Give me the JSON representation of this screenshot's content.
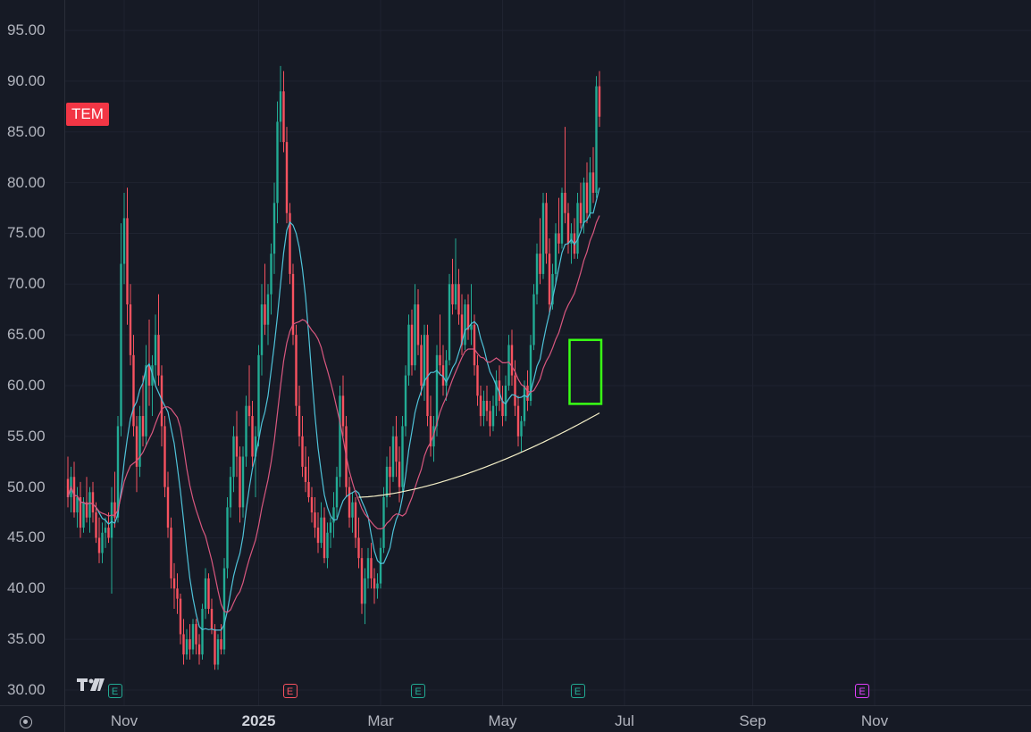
{
  "ticker": "TEM",
  "chart_data": {
    "type": "candlestick",
    "symbol": "TEM",
    "ylim": [
      28.5,
      98
    ],
    "y_ticks": [
      "95.00",
      "90.00",
      "85.00",
      "80.00",
      "75.00",
      "70.00",
      "65.00",
      "60.00",
      "55.00",
      "50.00",
      "45.00",
      "40.00",
      "35.00",
      "30.00"
    ],
    "x_ticks": [
      "Nov",
      "2025",
      "Mar",
      "May",
      "Jul",
      "Sep",
      "Nov"
    ],
    "x_tick_index": [
      18,
      61,
      100,
      139,
      178,
      219,
      258
    ],
    "colors": {
      "up": "#22ab94",
      "down": "#f7525f",
      "ma_fast": "#4fc3d9",
      "ma_mid": "#d9577f",
      "ma_slow": "#f5f0c8",
      "highlight": "#39ff14"
    },
    "ohlc": [
      [
        50.8,
        53.0,
        48.0,
        49.0
      ],
      [
        49.0,
        52.0,
        47.5,
        51.0
      ],
      [
        51.0,
        52.5,
        47.0,
        47.5
      ],
      [
        47.5,
        50.0,
        46.0,
        49.0
      ],
      [
        49.0,
        50.5,
        45.0,
        46.0
      ],
      [
        46.0,
        49.0,
        45.5,
        48.5
      ],
      [
        48.5,
        51.0,
        46.5,
        47.0
      ],
      [
        47.0,
        50.0,
        45.5,
        49.5
      ],
      [
        49.5,
        50.5,
        46.5,
        47.5
      ],
      [
        47.5,
        48.5,
        44.5,
        45.0
      ],
      [
        45.0,
        47.0,
        42.5,
        43.5
      ],
      [
        43.5,
        46.5,
        42.5,
        45.5
      ],
      [
        45.5,
        47.0,
        44.0,
        46.0
      ],
      [
        46.0,
        47.5,
        44.5,
        45.0
      ],
      [
        45.0,
        50.0,
        39.5,
        48.5
      ],
      [
        48.5,
        51.5,
        46.0,
        47.0
      ],
      [
        47.0,
        57.0,
        46.5,
        56.0
      ],
      [
        56.0,
        76.0,
        55.0,
        72.0
      ],
      [
        72.0,
        79.0,
        70.0,
        76.5
      ],
      [
        76.5,
        79.5,
        66.0,
        68.0
      ],
      [
        68.0,
        70.0,
        62.0,
        63.0
      ],
      [
        63.0,
        65.0,
        55.0,
        56.0
      ],
      [
        56.0,
        57.0,
        49.5,
        52.0
      ],
      [
        52.0,
        58.0,
        51.0,
        57.0
      ],
      [
        57.0,
        61.0,
        54.0,
        55.0
      ],
      [
        55.0,
        64.0,
        54.0,
        62.0
      ],
      [
        62.0,
        66.5,
        58.0,
        60.0
      ],
      [
        60.0,
        63.0,
        57.0,
        62.0
      ],
      [
        62.0,
        67.0,
        60.0,
        65.0
      ],
      [
        65.0,
        69.0,
        60.0,
        61.0
      ],
      [
        61.0,
        62.0,
        54.0,
        56.0
      ],
      [
        56.0,
        57.0,
        49.0,
        50.0
      ],
      [
        50.0,
        51.5,
        45.0,
        46.0
      ],
      [
        46.0,
        47.0,
        40.0,
        41.0
      ],
      [
        41.0,
        42.5,
        38.0,
        40.0
      ],
      [
        40.0,
        41.5,
        37.5,
        39.0
      ],
      [
        39.0,
        39.5,
        34.5,
        35.5
      ],
      [
        35.5,
        37.0,
        32.5,
        33.5
      ],
      [
        33.5,
        36.0,
        33.0,
        35.0
      ],
      [
        35.0,
        36.5,
        33.0,
        34.0
      ],
      [
        34.0,
        37.0,
        33.5,
        36.5
      ],
      [
        36.5,
        37.0,
        33.5,
        34.5
      ],
      [
        34.5,
        35.5,
        32.5,
        33.5
      ],
      [
        33.5,
        38.5,
        33.0,
        38.0
      ],
      [
        38.0,
        42.0,
        37.0,
        41.0
      ],
      [
        41.0,
        41.5,
        37.5,
        38.0
      ],
      [
        38.0,
        39.0,
        35.5,
        36.0
      ],
      [
        36.0,
        36.5,
        32.0,
        32.5
      ],
      [
        32.5,
        35.5,
        32.0,
        35.0
      ],
      [
        35.0,
        36.5,
        33.5,
        34.0
      ],
      [
        34.0,
        43.0,
        33.5,
        42.0
      ],
      [
        42.0,
        49.0,
        41.0,
        48.0
      ],
      [
        48.0,
        52.0,
        47.0,
        51.0
      ],
      [
        51.0,
        56.0,
        49.5,
        55.0
      ],
      [
        55.0,
        57.5,
        51.0,
        53.0
      ],
      [
        53.0,
        54.0,
        46.5,
        48.0
      ],
      [
        48.0,
        54.0,
        47.0,
        53.0
      ],
      [
        53.0,
        59.0,
        52.0,
        58.0
      ],
      [
        58.0,
        62.0,
        56.0,
        57.0
      ],
      [
        57.0,
        58.5,
        52.0,
        53.0
      ],
      [
        53.0,
        56.0,
        49.0,
        55.0
      ],
      [
        55.0,
        64.0,
        54.0,
        63.0
      ],
      [
        63.0,
        70.0,
        61.0,
        68.0
      ],
      [
        68.0,
        72.0,
        65.0,
        66.0
      ],
      [
        66.0,
        70.0,
        64.0,
        69.0
      ],
      [
        69.0,
        74.0,
        67.0,
        73.0
      ],
      [
        73.0,
        80.0,
        71.0,
        78.0
      ],
      [
        78.0,
        88.0,
        76.0,
        86.0
      ],
      [
        86.0,
        91.5,
        84.0,
        89.0
      ],
      [
        89.0,
        91.0,
        83.0,
        84.0
      ],
      [
        84.0,
        85.5,
        76.0,
        77.0
      ],
      [
        77.0,
        78.0,
        70.0,
        71.0
      ],
      [
        71.0,
        72.0,
        64.0,
        65.0
      ],
      [
        65.0,
        66.0,
        57.0,
        58.0
      ],
      [
        58.0,
        60.0,
        54.0,
        55.0
      ],
      [
        55.0,
        57.0,
        51.0,
        52.0
      ],
      [
        52.0,
        54.0,
        49.5,
        50.5
      ],
      [
        50.5,
        53.0,
        48.5,
        49.0
      ],
      [
        49.0,
        50.0,
        46.5,
        47.5
      ],
      [
        47.5,
        49.0,
        45.0,
        46.0
      ],
      [
        46.0,
        47.5,
        43.5,
        44.5
      ],
      [
        44.5,
        48.5,
        44.0,
        47.0
      ],
      [
        47.0,
        48.0,
        42.5,
        43.0
      ],
      [
        43.0,
        46.5,
        42.0,
        45.5
      ],
      [
        45.5,
        47.0,
        44.0,
        46.5
      ],
      [
        46.5,
        49.5,
        45.0,
        48.0
      ],
      [
        48.0,
        52.0,
        47.0,
        51.0
      ],
      [
        51.0,
        60.0,
        50.0,
        59.0
      ],
      [
        59.0,
        61.0,
        55.0,
        56.0
      ],
      [
        56.0,
        57.0,
        49.0,
        50.0
      ],
      [
        50.0,
        51.0,
        46.0,
        47.0
      ],
      [
        47.0,
        49.5,
        45.5,
        48.5
      ],
      [
        48.5,
        49.0,
        44.0,
        45.0
      ],
      [
        45.0,
        47.0,
        42.0,
        43.0
      ],
      [
        43.0,
        44.0,
        37.5,
        38.5
      ],
      [
        38.5,
        42.0,
        36.5,
        41.0
      ],
      [
        41.0,
        44.0,
        40.0,
        43.0
      ],
      [
        43.0,
        44.5,
        40.0,
        41.0
      ],
      [
        41.0,
        42.0,
        38.5,
        40.0
      ],
      [
        40.0,
        41.5,
        39.0,
        40.5
      ],
      [
        40.5,
        45.0,
        40.0,
        44.0
      ],
      [
        44.0,
        50.0,
        43.5,
        49.0
      ],
      [
        49.0,
        53.0,
        48.0,
        52.0
      ],
      [
        52.0,
        54.0,
        49.0,
        51.0
      ],
      [
        51.0,
        56.0,
        50.5,
        55.0
      ],
      [
        55.0,
        57.0,
        51.0,
        52.5
      ],
      [
        52.5,
        54.0,
        48.5,
        50.0
      ],
      [
        50.0,
        57.0,
        49.5,
        56.0
      ],
      [
        56.0,
        62.0,
        55.0,
        61.0
      ],
      [
        61.0,
        67.0,
        60.0,
        66.0
      ],
      [
        66.0,
        67.5,
        61.0,
        62.0
      ],
      [
        62.0,
        70.0,
        61.5,
        68.0
      ],
      [
        68.0,
        69.5,
        63.0,
        64.0
      ],
      [
        64.0,
        65.0,
        59.0,
        60.0
      ],
      [
        60.0,
        66.0,
        58.5,
        65.0
      ],
      [
        65.0,
        66.0,
        56.0,
        57.0
      ],
      [
        57.0,
        59.0,
        53.0,
        54.0
      ],
      [
        54.0,
        57.0,
        52.5,
        56.0
      ],
      [
        56.0,
        64.0,
        55.0,
        63.0
      ],
      [
        63.0,
        67.0,
        61.0,
        62.0
      ],
      [
        62.0,
        64.0,
        59.0,
        60.0
      ],
      [
        60.0,
        63.5,
        58.5,
        62.5
      ],
      [
        62.5,
        71.0,
        62.0,
        70.0
      ],
      [
        70.0,
        72.5,
        67.0,
        68.0
      ],
      [
        68.0,
        74.5,
        67.5,
        70.0
      ],
      [
        70.0,
        71.5,
        66.0,
        67.0
      ],
      [
        67.0,
        69.0,
        63.0,
        64.0
      ],
      [
        64.0,
        68.5,
        63.5,
        68.0
      ],
      [
        68.0,
        69.0,
        64.5,
        65.5
      ],
      [
        65.5,
        70.0,
        64.0,
        66.0
      ],
      [
        66.0,
        67.0,
        61.0,
        62.0
      ],
      [
        62.0,
        63.0,
        58.0,
        59.0
      ],
      [
        59.0,
        60.0,
        56.0,
        57.0
      ],
      [
        57.0,
        59.5,
        56.0,
        58.5
      ],
      [
        58.5,
        60.0,
        56.5,
        57.5
      ],
      [
        57.5,
        58.5,
        55.0,
        56.0
      ],
      [
        56.0,
        59.0,
        55.5,
        58.0
      ],
      [
        58.0,
        61.5,
        57.0,
        60.5
      ],
      [
        60.5,
        62.0,
        57.5,
        58.5
      ],
      [
        58.5,
        60.0,
        56.0,
        57.0
      ],
      [
        57.0,
        61.0,
        56.5,
        60.0
      ],
      [
        60.0,
        65.0,
        59.5,
        64.0
      ],
      [
        64.0,
        65.5,
        60.0,
        61.0
      ],
      [
        61.0,
        62.5,
        57.0,
        58.0
      ],
      [
        58.0,
        59.0,
        54.0,
        55.0
      ],
      [
        55.0,
        57.0,
        53.5,
        56.5
      ],
      [
        56.5,
        60.5,
        56.0,
        60.0
      ],
      [
        60.0,
        61.5,
        57.5,
        58.5
      ],
      [
        58.5,
        65.0,
        58.0,
        64.0
      ],
      [
        64.0,
        70.0,
        63.5,
        69.0
      ],
      [
        69.0,
        74.0,
        68.0,
        73.0
      ],
      [
        73.0,
        76.5,
        70.0,
        71.0
      ],
      [
        71.0,
        79.0,
        70.5,
        78.0
      ],
      [
        78.0,
        79.0,
        72.0,
        73.0
      ],
      [
        73.0,
        74.5,
        67.0,
        68.0
      ],
      [
        68.0,
        72.0,
        67.5,
        71.0
      ],
      [
        71.0,
        76.0,
        70.0,
        75.0
      ],
      [
        75.0,
        78.5,
        73.0,
        74.0
      ],
      [
        74.0,
        79.5,
        73.5,
        79.0
      ],
      [
        79.0,
        85.5,
        76.0,
        77.0
      ],
      [
        77.0,
        78.0,
        73.0,
        74.0
      ],
      [
        74.0,
        76.0,
        72.0,
        75.0
      ],
      [
        75.0,
        76.5,
        72.5,
        73.0
      ],
      [
        73.0,
        79.0,
        72.5,
        78.0
      ],
      [
        78.0,
        80.0,
        75.5,
        76.0
      ],
      [
        76.0,
        80.5,
        75.0,
        80.0
      ],
      [
        80.0,
        82.0,
        76.0,
        77.0
      ],
      [
        77.0,
        82.5,
        76.5,
        81.0
      ],
      [
        81.0,
        83.5,
        78.0,
        79.0
      ],
      [
        79.0,
        90.5,
        78.5,
        89.5
      ],
      [
        89.5,
        91.0,
        85.5,
        86.5
      ]
    ],
    "moving_averages": [
      {
        "key": "ma_fast",
        "period": 10
      },
      {
        "key": "ma_mid",
        "period": 20
      }
    ],
    "ma_slow": {
      "start_index": 93,
      "start": 49.0,
      "end": 57.3
    },
    "earnings_icons": [
      {
        "label": "E",
        "index": 15,
        "color": "#22ab94"
      },
      {
        "label": "E",
        "index": 71,
        "color": "#f7525f"
      },
      {
        "label": "E",
        "index": 112,
        "color": "#22ab94"
      },
      {
        "label": "E",
        "index": 163,
        "color": "#22ab94"
      },
      {
        "label": "E",
        "index": 254,
        "color": "#e040fb"
      }
    ],
    "highlight_box": {
      "from_index": 161,
      "to_index": 170,
      "y_low": 58.2,
      "y_high": 64.5
    }
  }
}
